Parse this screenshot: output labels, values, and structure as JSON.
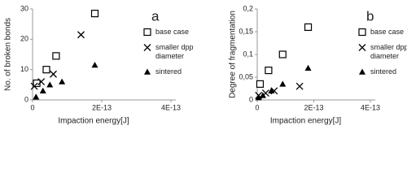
{
  "chart_data": [
    {
      "type": "scatter",
      "label": "a",
      "x_label": "Impaction energy[J]",
      "y_label": "No. of broken bonds",
      "xlim": [
        0,
        4e-13
      ],
      "xticks": [
        0,
        {
          "value": 2e-13,
          "label": "2E-13"
        },
        {
          "value": 4e-13,
          "label": "4E-13"
        }
      ],
      "ylim": [
        0,
        30
      ],
      "yticks": [
        0,
        10,
        20,
        30
      ],
      "series": [
        {
          "name": "base case",
          "color": "#000000",
          "marker": "square",
          "x": [
            1.2e-14,
            4e-14,
            6.8e-14,
            1.8e-13
          ],
          "values": [
            5.5,
            10,
            14.5,
            28.5
          ]
        },
        {
          "name": "smaller dpp diameter",
          "color": "#000000",
          "marker": "x",
          "x": [
            5e-15,
            2.5e-14,
            6e-14,
            1.4e-13
          ],
          "values": [
            4.5,
            6,
            8.5,
            21.5
          ]
        },
        {
          "name": "sintered",
          "color": "#000000",
          "marker": "triangle",
          "x": [
            1e-14,
            3e-14,
            5e-14,
            8.5e-14,
            1.8e-13
          ],
          "values": [
            1,
            3,
            5,
            6,
            11.5
          ]
        }
      ]
    },
    {
      "type": "scatter",
      "label": "b",
      "x_label": "Impaction energy[J]",
      "y_label": "Degree of fragmentation",
      "xlim": [
        0,
        4e-13
      ],
      "xticks": [
        0,
        {
          "value": 2e-13,
          "label": "2E-13"
        },
        {
          "value": 4e-13,
          "label": "4E-13"
        }
      ],
      "ylim": [
        0,
        0.2
      ],
      "yticks": [
        0,
        {
          "value": 0.05,
          "label": "0,05"
        },
        {
          "value": 0.1,
          "label": "0,1"
        },
        {
          "value": 0.15,
          "label": "0,15"
        },
        {
          "value": 0.2,
          "label": "0,2"
        }
      ],
      "series": [
        {
          "name": "base case",
          "color": "#000000",
          "marker": "square",
          "x": [
            1e-14,
            4e-14,
            9e-14,
            1.8e-13
          ],
          "values": [
            0.035,
            0.065,
            0.1,
            0.16
          ]
        },
        {
          "name": "smaller dpp diameter",
          "color": "#000000",
          "marker": "x",
          "x": [
            5e-15,
            3e-14,
            6e-14,
            1.5e-13
          ],
          "values": [
            0.01,
            0.015,
            0.02,
            0.03
          ]
        },
        {
          "name": "sintered",
          "color": "#000000",
          "marker": "triangle",
          "x": [
            5e-15,
            2e-14,
            5e-14,
            9e-14,
            1.8e-13
          ],
          "values": [
            0.005,
            0.01,
            0.02,
            0.035,
            0.07
          ]
        }
      ]
    }
  ]
}
